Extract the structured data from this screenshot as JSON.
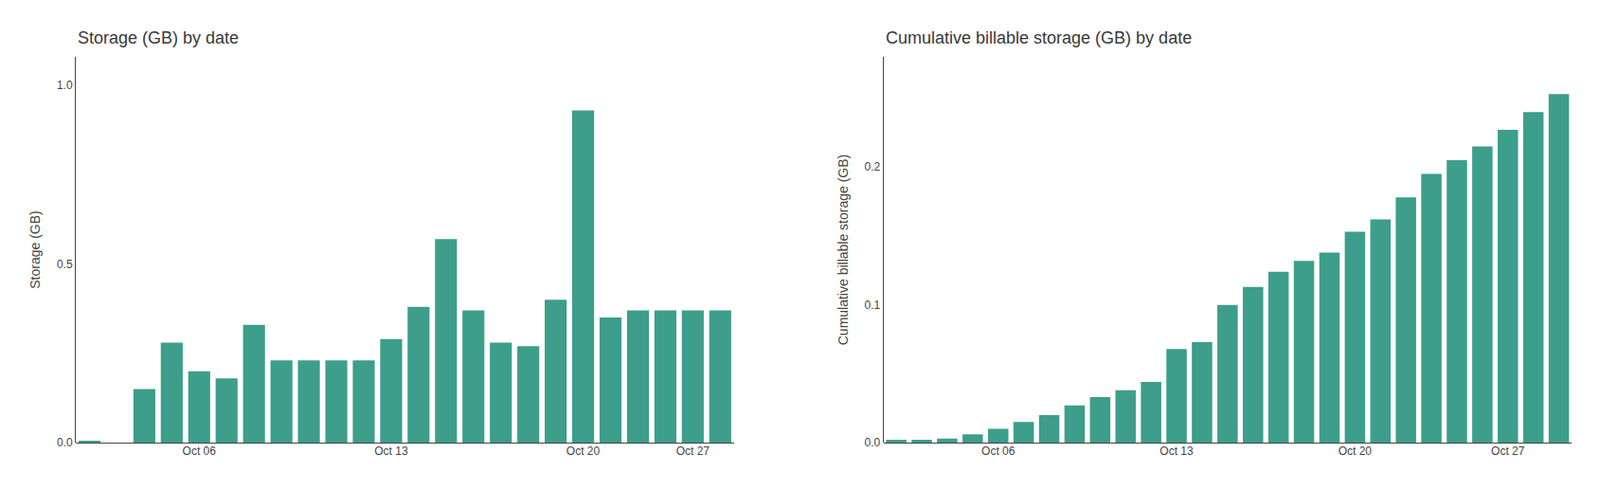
{
  "chart_data": [
    {
      "type": "bar",
      "title": "Storage (GB) by date",
      "ylabel": "Storage (GB)",
      "categories": [
        null,
        null,
        null,
        null,
        "Oct 06",
        null,
        null,
        null,
        null,
        null,
        null,
        "Oct 13",
        null,
        null,
        null,
        null,
        null,
        null,
        "Oct 20",
        null,
        null,
        null,
        "Oct 27",
        null
      ],
      "values": [
        0.003,
        0.0,
        0.15,
        0.28,
        0.2,
        0.18,
        0.33,
        0.23,
        0.23,
        0.23,
        0.23,
        0.29,
        0.38,
        0.57,
        0.37,
        0.28,
        0.27,
        0.4,
        0.93,
        0.35,
        0.37,
        0.37,
        0.37,
        0.37
      ],
      "color": "#3c9e8b",
      "ylim": [
        0,
        1.08
      ],
      "yticks": [
        {
          "value": 0,
          "label": "0.0"
        },
        0.5,
        {
          "value": 1,
          "label": "1.0"
        }
      ],
      "grid": false
    },
    {
      "type": "bar",
      "title": "Cumulative billable storage (GB) by date",
      "ylabel": "Cumulative billable storage (GB)",
      "categories": [
        null,
        null,
        null,
        null,
        "Oct 06",
        null,
        null,
        null,
        null,
        null,
        null,
        "Oct 13",
        null,
        null,
        null,
        null,
        null,
        null,
        "Oct 20",
        null,
        null,
        null,
        null,
        null,
        "Oct 27",
        null,
        null
      ],
      "values": [
        0.002,
        0.002,
        0.003,
        0.006,
        0.01,
        0.015,
        0.02,
        0.027,
        0.033,
        0.038,
        0.044,
        0.068,
        0.073,
        0.1,
        0.113,
        0.124,
        0.132,
        0.138,
        0.153,
        0.162,
        0.178,
        0.195,
        0.205,
        0.215,
        0.227,
        0.24,
        0.253
      ],
      "color": "#3c9e8b",
      "ylim": [
        0,
        0.28
      ],
      "yticks": [
        {
          "value": 0,
          "label": "0.0"
        },
        0.1,
        0.2
      ],
      "grid": false
    }
  ]
}
